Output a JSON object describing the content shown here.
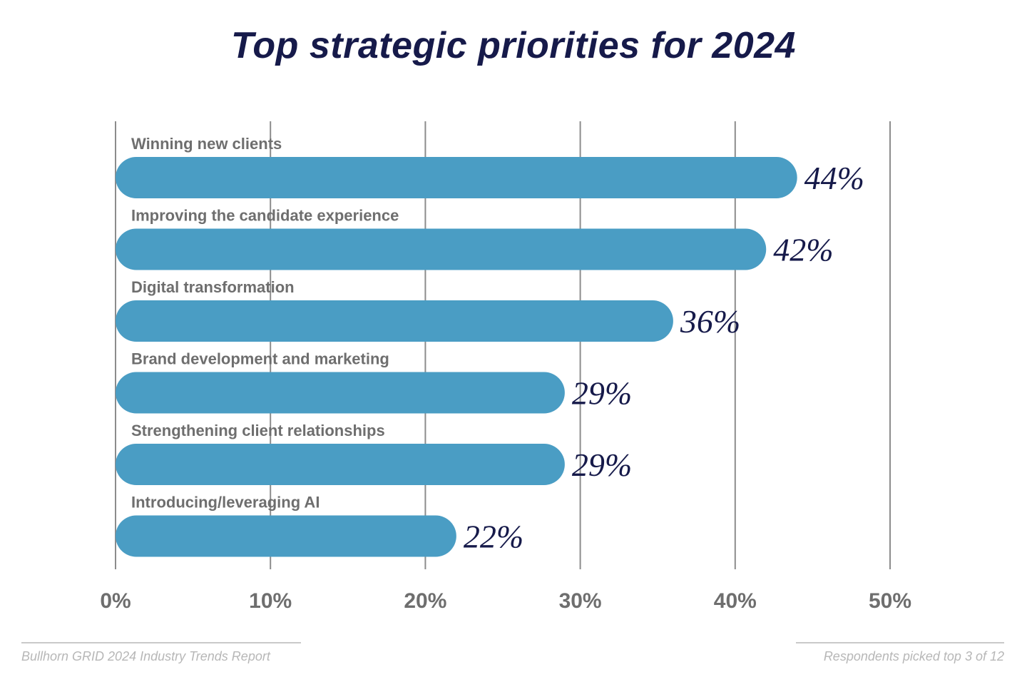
{
  "title": "Top strategic priorities for 2024",
  "footer": {
    "source": "Bullhorn GRID 2024 Industry Trends Report",
    "note": "Respondents picked top 3 of 12"
  },
  "colors": {
    "bar": "#4a9dc4",
    "title": "#161a4a",
    "value_label": "#161a4a",
    "category_label": "#6e6e6e",
    "tick_label": "#6e6e6e",
    "grid": "#8c8c8c"
  },
  "chart_data": {
    "type": "bar",
    "orientation": "horizontal",
    "title": "Top strategic priorities for 2024",
    "categories": [
      "Winning new clients",
      "Improving the candidate experience",
      "Digital transformation",
      "Brand development and marketing",
      "Strengthening client relationships",
      "Introducing/leveraging AI"
    ],
    "values": [
      44,
      42,
      36,
      29,
      29,
      22
    ],
    "value_labels": [
      "44%",
      "42%",
      "36%",
      "29%",
      "29%",
      "22%"
    ],
    "xlim": [
      0,
      50
    ],
    "xticks": [
      0,
      10,
      20,
      30,
      40,
      50
    ],
    "xtick_labels": [
      "0%",
      "10%",
      "20%",
      "30%",
      "40%",
      "50%"
    ],
    "xlabel": "",
    "ylabel": "",
    "grid": true
  }
}
